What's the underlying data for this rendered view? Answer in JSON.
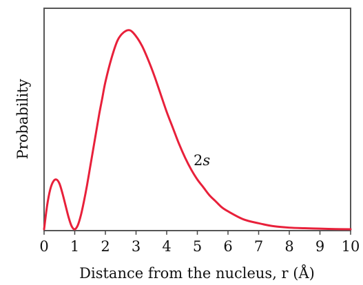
{
  "chart_data": {
    "type": "line",
    "title": "",
    "xlabel": "Distance from the nucleus, r (Å)",
    "ylabel": "Probability",
    "xlim": [
      0,
      10
    ],
    "ylim": [
      0,
      1
    ],
    "xticks": [
      "0",
      "1",
      "2",
      "3",
      "4",
      "5",
      "6",
      "7",
      "8",
      "9",
      "10"
    ],
    "yticks": [],
    "grid": false,
    "legend": "none",
    "line_color": "#e8203a",
    "series": [
      {
        "name": "2s",
        "x": [
          0,
          0.1,
          0.2,
          0.3,
          0.4,
          0.5,
          0.6,
          0.7,
          0.8,
          0.9,
          1.0,
          1.1,
          1.2,
          1.3,
          1.4,
          1.5,
          1.6,
          1.7,
          1.8,
          1.9,
          2.0,
          2.2,
          2.4,
          2.6,
          2.8,
          3.0,
          3.2,
          3.4,
          3.6,
          3.8,
          4.0,
          4.2,
          4.4,
          4.6,
          4.8,
          5.0,
          5.2,
          5.4,
          5.6,
          5.8,
          6.0,
          6.5,
          7.0,
          7.5,
          8.0,
          8.5,
          9.0,
          9.5,
          10.0
        ],
        "y": [
          0,
          0.12,
          0.2,
          0.24,
          0.25,
          0.23,
          0.18,
          0.12,
          0.06,
          0.015,
          0.0,
          0.02,
          0.07,
          0.14,
          0.22,
          0.31,
          0.4,
          0.49,
          0.58,
          0.66,
          0.74,
          0.86,
          0.95,
          0.99,
          1.0,
          0.97,
          0.92,
          0.85,
          0.77,
          0.68,
          0.59,
          0.51,
          0.43,
          0.36,
          0.3,
          0.25,
          0.21,
          0.17,
          0.14,
          0.11,
          0.09,
          0.05,
          0.03,
          0.015,
          0.008,
          0.005,
          0.003,
          0.001,
          0.0
        ]
      }
    ]
  }
}
